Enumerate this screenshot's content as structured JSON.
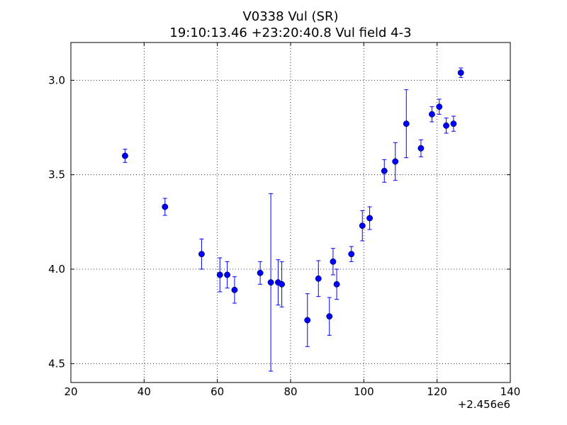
{
  "chart_data": {
    "type": "scatter",
    "title": "V0338 Vul (SR)",
    "subtitle": "19:10:13.46 +23:20:40.8 Vul field 4-3",
    "xlabel": "",
    "ylabel": "",
    "x_offset_label": "+2.456e6",
    "xlim": [
      20,
      140
    ],
    "ylim": [
      4.6,
      2.8
    ],
    "y_inverted": true,
    "grid": true,
    "x_ticks": [
      20,
      40,
      60,
      80,
      100,
      120,
      140
    ],
    "x_tick_labels": [
      "20",
      "40",
      "60",
      "80",
      "100",
      "120",
      "140"
    ],
    "y_ticks": [
      3.0,
      3.5,
      4.0,
      4.5
    ],
    "y_tick_labels": [
      "3.0",
      "3.5",
      "4.0",
      "4.5"
    ],
    "marker_color": "#0000ff",
    "series": [
      {
        "points": [
          {
            "x": 34.8,
            "y": 3.4,
            "err": 0.035
          },
          {
            "x": 45.7,
            "y": 3.67,
            "err": 0.045
          },
          {
            "x": 55.7,
            "y": 3.92,
            "err": 0.08
          },
          {
            "x": 60.7,
            "y": 4.03,
            "err": 0.09
          },
          {
            "x": 62.7,
            "y": 4.03,
            "err": 0.07
          },
          {
            "x": 64.7,
            "y": 4.11,
            "err": 0.07
          },
          {
            "x": 71.7,
            "y": 4.02,
            "err": 0.06
          },
          {
            "x": 74.6,
            "y": 4.07,
            "err": 0.47
          },
          {
            "x": 76.6,
            "y": 4.07,
            "err": 0.12
          },
          {
            "x": 77.6,
            "y": 4.08,
            "err": 0.12
          },
          {
            "x": 84.6,
            "y": 4.27,
            "err": 0.14
          },
          {
            "x": 87.6,
            "y": 4.05,
            "err": 0.095
          },
          {
            "x": 90.6,
            "y": 4.25,
            "err": 0.1
          },
          {
            "x": 91.6,
            "y": 3.96,
            "err": 0.07
          },
          {
            "x": 92.6,
            "y": 4.08,
            "err": 0.08
          },
          {
            "x": 96.6,
            "y": 3.92,
            "err": 0.04
          },
          {
            "x": 99.6,
            "y": 3.77,
            "err": 0.08
          },
          {
            "x": 101.6,
            "y": 3.73,
            "err": 0.06
          },
          {
            "x": 105.6,
            "y": 3.48,
            "err": 0.06
          },
          {
            "x": 108.6,
            "y": 3.43,
            "err": 0.1
          },
          {
            "x": 111.6,
            "y": 3.23,
            "err": 0.18
          },
          {
            "x": 115.6,
            "y": 3.36,
            "err": 0.045
          },
          {
            "x": 118.6,
            "y": 3.18,
            "err": 0.04
          },
          {
            "x": 120.6,
            "y": 3.14,
            "err": 0.04
          },
          {
            "x": 122.5,
            "y": 3.24,
            "err": 0.04
          },
          {
            "x": 124.5,
            "y": 3.23,
            "err": 0.04
          },
          {
            "x": 126.5,
            "y": 2.96,
            "err": 0.025
          }
        ]
      }
    ]
  }
}
